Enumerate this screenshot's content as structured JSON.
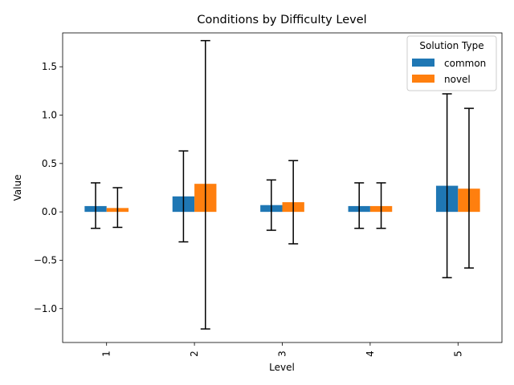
{
  "chart_data": {
    "type": "bar",
    "title": "Conditions by Difficulty Level",
    "xlabel": "Level",
    "ylabel": "Value",
    "categories": [
      "1",
      "2",
      "3",
      "4",
      "5"
    ],
    "yticks": [
      -1.0,
      -0.5,
      0.0,
      0.5,
      1.0,
      1.5
    ],
    "ytick_labels": [
      "−1.0",
      "−0.5",
      "0.0",
      "0.5",
      "1.0",
      "1.5"
    ],
    "ylim": [
      -1.35,
      1.85
    ],
    "series": [
      {
        "name": "common",
        "color": "#1f77b4",
        "values": [
          0.06,
          0.16,
          0.07,
          0.06,
          0.27
        ],
        "err_low": [
          -0.17,
          -0.31,
          -0.19,
          -0.17,
          -0.68
        ],
        "err_high": [
          0.3,
          0.63,
          0.33,
          0.3,
          1.22
        ]
      },
      {
        "name": "novel",
        "color": "#ff7f0e",
        "values": [
          0.04,
          0.29,
          0.1,
          0.06,
          0.24
        ],
        "err_low": [
          -0.16,
          -1.21,
          -0.33,
          -0.17,
          -0.58
        ],
        "err_high": [
          0.25,
          1.77,
          0.53,
          0.3,
          1.07
        ]
      }
    ],
    "legend": {
      "title": "Solution Type",
      "placement": "top-right"
    },
    "grid": false
  }
}
